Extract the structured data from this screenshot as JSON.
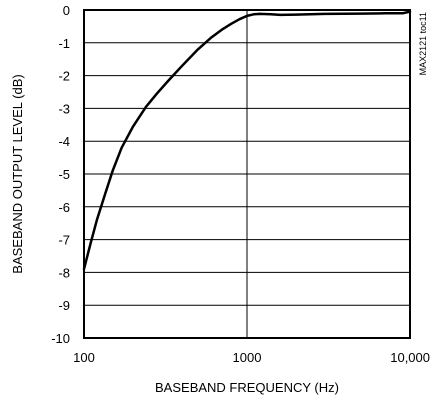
{
  "chart_data": {
    "type": "line",
    "xlabel": "BASEBAND FREQUENCY (Hz)",
    "ylabel": "BASEBAND OUTPUT LEVEL (dB)",
    "figure_code": "MAX2121 toc11",
    "x_scale": "log",
    "xlim": [
      100,
      10000
    ],
    "ylim": [
      -10,
      0
    ],
    "grid": true,
    "x_ticks": [
      {
        "value": 100,
        "label": "100"
      },
      {
        "value": 1000,
        "label": "1000"
      },
      {
        "value": 10000,
        "label": "10,000"
      }
    ],
    "y_ticks": [
      {
        "value": 0,
        "label": "0"
      },
      {
        "value": -1,
        "label": "-1"
      },
      {
        "value": -2,
        "label": "-2"
      },
      {
        "value": -3,
        "label": "-3"
      },
      {
        "value": -4,
        "label": "-4"
      },
      {
        "value": -5,
        "label": "-5"
      },
      {
        "value": -6,
        "label": "-6"
      },
      {
        "value": -7,
        "label": "-7"
      },
      {
        "value": -8,
        "label": "-8"
      },
      {
        "value": -9,
        "label": "-9"
      },
      {
        "value": -10,
        "label": "-10"
      }
    ],
    "series": [
      {
        "x": [
          100,
          110,
          120,
          135,
          150,
          170,
          200,
          240,
          280,
          330,
          400,
          500,
          600,
          700,
          800,
          900,
          1000,
          1100,
          1200,
          1400,
          1600,
          2000,
          3000,
          5000,
          7000,
          9000,
          10000
        ],
        "y": [
          -7.9,
          -7.1,
          -6.4,
          -5.6,
          -4.9,
          -4.2,
          -3.55,
          -2.95,
          -2.55,
          -2.15,
          -1.7,
          -1.2,
          -0.85,
          -0.6,
          -0.42,
          -0.28,
          -0.18,
          -0.13,
          -0.12,
          -0.13,
          -0.15,
          -0.14,
          -0.12,
          -0.11,
          -0.1,
          -0.1,
          -0.05
        ]
      }
    ]
  }
}
